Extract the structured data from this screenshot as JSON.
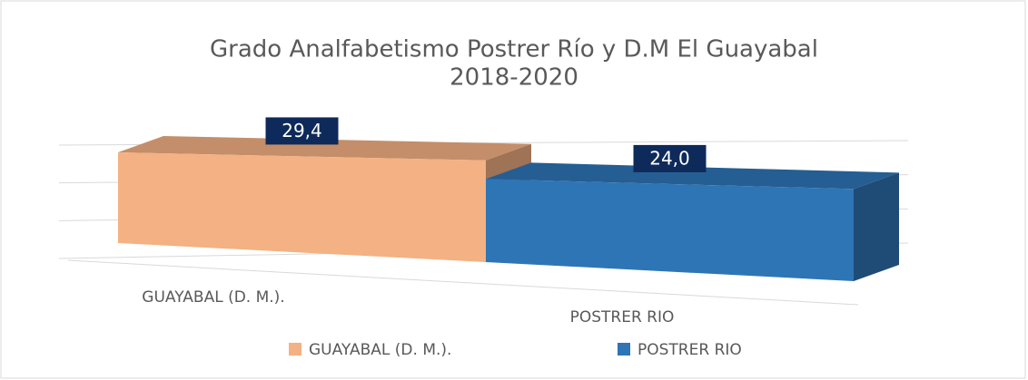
{
  "chart_data": {
    "type": "bar3d",
    "title": "Grado Analfabetismo Postrer Río y D.M El Guayabal",
    "subtitle": "2018-2020",
    "categories": [
      "GUAYABAL (D. M.).",
      "POSTRER RIO"
    ],
    "values": [
      29.4,
      24.0
    ],
    "value_labels": [
      "29,4",
      "24,0"
    ],
    "colors": [
      "#f4b183",
      "#2e75b6"
    ],
    "ylim": [
      0,
      30
    ],
    "yticks": [
      0,
      10,
      20,
      30
    ],
    "grid": true,
    "legend": "bottom"
  }
}
